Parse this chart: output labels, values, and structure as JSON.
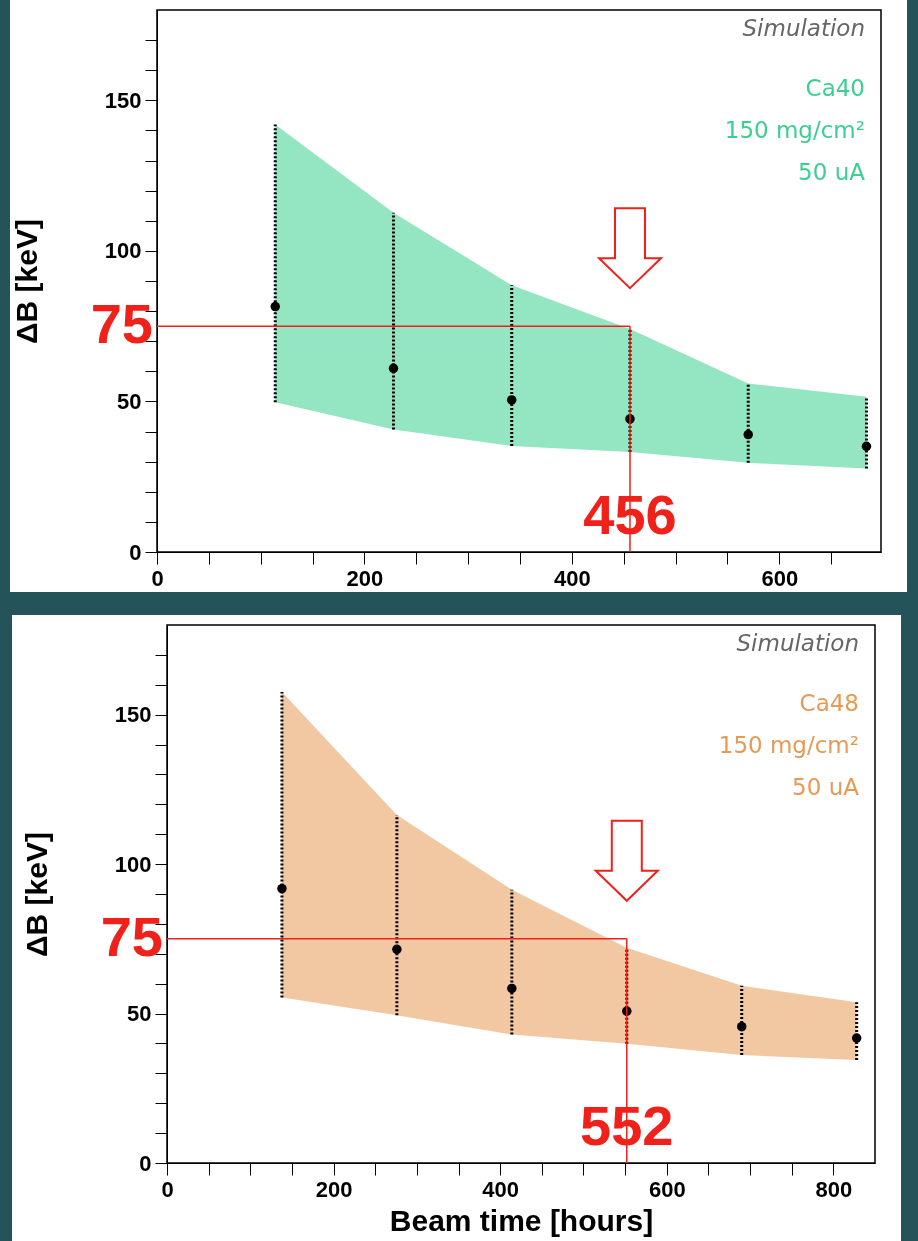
{
  "chart_data": [
    {
      "type": "scatter",
      "ylabel": "ΔB [keV]",
      "annotations": [
        "Simulation",
        "Ca40",
        "150 mg/cm²",
        "50 uA"
      ],
      "marker": "circle",
      "x": [
        114,
        228,
        342,
        456,
        570,
        684
      ],
      "xlim": [
        0,
        698
      ],
      "ylim": [
        0,
        180
      ],
      "xticks": [
        0,
        {
          "value": 50,
          "label": null
        },
        {
          "value": 100,
          "label": null
        },
        {
          "value": 150,
          "label": null
        },
        200,
        {
          "value": 250,
          "label": null
        },
        {
          "value": 300,
          "label": null
        },
        {
          "value": 350,
          "label": null
        },
        400,
        {
          "value": 450,
          "label": null
        },
        {
          "value": 500,
          "label": null
        },
        {
          "value": 550,
          "label": null
        },
        600,
        {
          "value": 650,
          "label": null
        }
      ],
      "yticks": [
        0,
        {
          "value": 10,
          "label": null
        },
        {
          "value": 20,
          "label": null
        },
        {
          "value": 30,
          "label": null
        },
        {
          "value": 40,
          "label": null
        },
        50,
        {
          "value": 60,
          "label": null
        },
        {
          "value": 70,
          "label": null
        },
        {
          "value": 80,
          "label": null
        },
        {
          "value": 90,
          "label": null
        },
        100,
        {
          "value": 110,
          "label": null
        },
        {
          "value": 120,
          "label": null
        },
        {
          "value": 130,
          "label": null
        },
        {
          "value": 140,
          "label": null
        },
        150,
        {
          "value": 160,
          "label": null
        },
        {
          "value": 170,
          "label": null
        }
      ],
      "series": [
        {
          "color": "#3ccf90",
          "colors": [
            "#000000",
            "#000000",
            "#000000",
            "#000000",
            "#000000",
            "#000000"
          ],
          "values": [
            81.5,
            61,
            50.5,
            44.2,
            39,
            35.1
          ],
          "errors": [
            [
              49.7,
              142
            ],
            [
              40.7,
              112.7
            ],
            [
              35.2,
              88.6
            ],
            [
              33.2,
              74.1
            ],
            [
              29.6,
              56
            ],
            [
              27.7,
              51.6
            ]
          ],
          "lower": [
            49.7,
            40.7,
            35.2,
            33.2,
            29.6,
            27.7
          ],
          "upper": [
            142,
            112.7,
            88.6,
            74.1,
            56,
            51.6
          ]
        }
      ],
      "ref_lines": [
        {
          "axis": "y",
          "value": 75,
          "label": "75",
          "color": "#f0201a"
        },
        {
          "axis": "x",
          "value": 456,
          "label": "456",
          "color": "#f0201a"
        }
      ]
    },
    {
      "type": "scatter",
      "xlabel": "Beam time [hours]",
      "ylabel": "ΔB [keV]",
      "annotations": [
        "Simulation",
        "Ca48",
        "150 mg/cm²",
        "50 uA"
      ],
      "marker": "circle",
      "x": [
        138,
        276,
        414,
        552,
        690,
        828
      ],
      "xlim": [
        0,
        850
      ],
      "ylim": [
        0,
        180
      ],
      "xticks": [
        0,
        {
          "value": 50,
          "label": null
        },
        {
          "value": 100,
          "label": null
        },
        {
          "value": 150,
          "label": null
        },
        200,
        {
          "value": 250,
          "label": null
        },
        {
          "value": 300,
          "label": null
        },
        {
          "value": 350,
          "label": null
        },
        400,
        {
          "value": 450,
          "label": null
        },
        {
          "value": 500,
          "label": null
        },
        {
          "value": 550,
          "label": null
        },
        600,
        {
          "value": 650,
          "label": null
        },
        {
          "value": 700,
          "label": null
        },
        {
          "value": 750,
          "label": null
        },
        800
      ],
      "yticks": [
        0,
        {
          "value": 10,
          "label": null
        },
        {
          "value": 20,
          "label": null
        },
        {
          "value": 30,
          "label": null
        },
        {
          "value": 40,
          "label": null
        },
        50,
        {
          "value": 60,
          "label": null
        },
        {
          "value": 70,
          "label": null
        },
        {
          "value": 80,
          "label": null
        },
        {
          "value": 90,
          "label": null
        },
        100,
        {
          "value": 110,
          "label": null
        },
        {
          "value": 120,
          "label": null
        },
        {
          "value": 130,
          "label": null
        },
        {
          "value": 140,
          "label": null
        },
        150,
        {
          "value": 160,
          "label": null
        },
        {
          "value": 170,
          "label": null
        }
      ],
      "series": [
        {
          "color": "#e59a55",
          "colors": [
            "#000000",
            "#000000",
            "#000000",
            "#000000",
            "#000000",
            "#000000"
          ],
          "values": [
            91.8,
            71.5,
            58.4,
            50.8,
            45.6,
            41.8
          ],
          "errors": [
            [
              55.4,
              157.6
            ],
            [
              49.4,
              116.4
            ],
            [
              43,
              91.4
            ],
            [
              39.9,
              72
            ],
            [
              36.1,
              59.3
            ],
            [
              34.5,
              53.8
            ]
          ],
          "lower": [
            55.4,
            49.4,
            43,
            39.9,
            36.1,
            34.5
          ],
          "upper": [
            157.6,
            116.4,
            91.4,
            72,
            59.3,
            53.8
          ]
        }
      ],
      "ref_lines": [
        {
          "axis": "y",
          "value": 75,
          "label": "75",
          "color": "#f0201a"
        },
        {
          "axis": "x",
          "value": 552,
          "label": "552",
          "color": "#f0201a"
        }
      ]
    }
  ]
}
